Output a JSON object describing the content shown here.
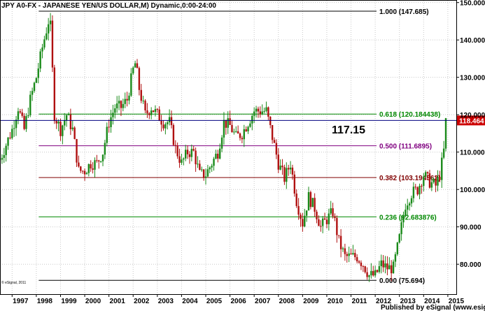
{
  "chart_data": {
    "type": "candlestick",
    "title": "JPY A0-FX - JAPANESE YEN/US DOLLAR,M) Dynamic,0:00-24:00",
    "x_ticks": [
      "1997",
      "1998",
      "1999",
      "2000",
      "2001",
      "2002",
      "2003",
      "2004",
      "2005",
      "2006",
      "2007",
      "2008",
      "2009",
      "2010",
      "2011",
      "2012",
      "2013",
      "2014",
      "2015"
    ],
    "y_ticks": [
      "80.000",
      "90.000",
      "100.000",
      "110.000",
      "120.000",
      "130.000",
      "140.000",
      "150.000"
    ],
    "ylim": [
      72,
      150.5
    ],
    "xlim": [
      1996.5,
      2015.35
    ],
    "grid": true,
    "colors": {
      "up": "#1a8a1a",
      "down": "#b01010",
      "fib_1": "#000000",
      "fib_0618": "#008800",
      "fib_05": "#800080",
      "fib_0382": "#800000",
      "fib_0236": "#008800",
      "fib_0": "#000000",
      "current_line": "#000080",
      "price_tag_bg": "#cc0000"
    },
    "fib_levels": [
      {
        "ratio": "1.000",
        "value": 147.685,
        "label": "1.000 (147.685)",
        "color": "#000000"
      },
      {
        "ratio": "0.618",
        "value": 120.184438,
        "label": "0.618 (120.184438)",
        "color": "#008800"
      },
      {
        "ratio": "0.500",
        "value": 111.6895,
        "label": "0.500 (111.6895)",
        "color": "#800080"
      },
      {
        "ratio": "0.382",
        "value": 103.194562,
        "label": "0.382 (103.194562)",
        "color": "#800000"
      },
      {
        "ratio": "0.236",
        "value": 92.683876,
        "label": "0.236 (92.683876)",
        "color": "#008800"
      },
      {
        "ratio": "0.000",
        "value": 75.694,
        "label": "0.000 (75.694)",
        "color": "#000000"
      }
    ],
    "fib_start_year": 1998.1,
    "annotation": "117.15",
    "current_price": 118.464,
    "current_price_label": "118.464",
    "series": [
      {
        "name": "",
        "x": [
          1996.5,
          1996.75,
          1997.0,
          1997.25,
          1997.5,
          1997.75,
          1998.0,
          1998.25,
          1998.5,
          1998.58,
          1998.75,
          1999.0,
          1999.25,
          1999.5,
          1999.75,
          2000.0,
          2000.25,
          2000.5,
          2000.75,
          2001.0,
          2001.25,
          2001.5,
          2001.75,
          2002.0,
          2002.1,
          2002.25,
          2002.5,
          2002.75,
          2003.0,
          2003.25,
          2003.5,
          2003.75,
          2004.0,
          2004.25,
          2004.5,
          2004.75,
          2005.0,
          2005.25,
          2005.5,
          2005.75,
          2006.0,
          2006.25,
          2006.5,
          2006.75,
          2007.0,
          2007.5,
          2007.75,
          2008.0,
          2008.25,
          2008.5,
          2008.75,
          2009.0,
          2009.25,
          2009.5,
          2009.75,
          2010.0,
          2010.25,
          2010.5,
          2010.75,
          2011.0,
          2011.25,
          2011.5,
          2011.75,
          2012.0,
          2012.25,
          2012.5,
          2012.75,
          2013.0,
          2013.25,
          2013.5,
          2013.75,
          2014.0,
          2014.25,
          2014.5,
          2014.67,
          2014.83,
          2014.92
        ],
        "values": [
          108,
          112,
          116,
          122,
          116,
          124,
          130,
          138,
          145,
          144,
          120,
          116,
          120,
          116,
          105,
          105,
          107,
          107,
          110,
          118,
          122,
          122,
          124,
          132,
          134,
          127,
          120,
          122,
          120,
          118,
          118,
          111,
          107,
          110,
          110,
          104,
          104,
          107,
          110,
          118,
          117,
          114,
          115,
          118,
          121,
          121,
          114,
          107,
          103,
          107,
          97,
          91,
          98,
          95,
          90,
          92,
          94,
          86,
          82,
          82,
          82,
          80,
          77,
          77,
          80,
          79,
          79,
          87,
          96,
          99,
          100,
          104,
          102,
          101,
          104,
          110,
          118.5
        ]
      }
    ]
  },
  "footer": {
    "published": "Published by eSignal (www.esignal.com)"
  },
  "watermark": "© eSignal, 2011"
}
